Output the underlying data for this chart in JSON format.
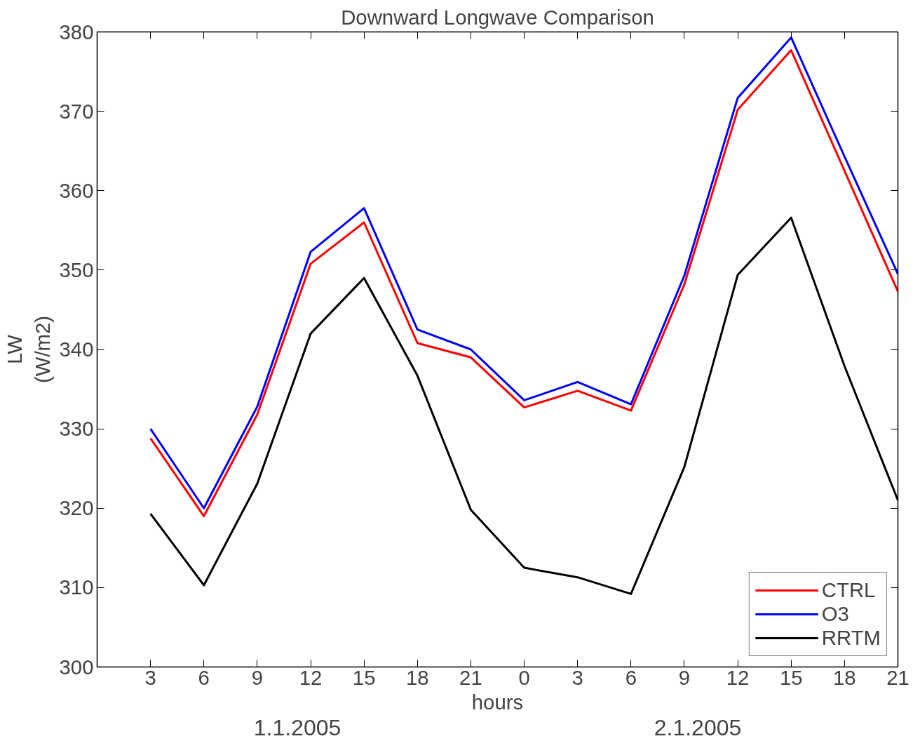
{
  "chart_data": {
    "type": "line",
    "title": "Downward Longwave Comparison",
    "xlabel": "hours",
    "ylabel": "LW\n(W/m2)",
    "x": [
      "2005-01-01T03:00",
      "2005-01-01T06:00",
      "2005-01-01T09:00",
      "2005-01-01T12:00",
      "2005-01-01T15:00",
      "2005-01-01T18:00",
      "2005-01-01T21:00",
      "2005-01-02T00:00",
      "2005-01-02T03:00",
      "2005-01-02T06:00",
      "2005-01-02T09:00",
      "2005-01-02T12:00",
      "2005-01-02T15:00",
      "2005-01-02T18:00",
      "2005-01-02T21:00"
    ],
    "xlim": [
      "2005-01-01T00:00",
      "2005-01-02T21:00"
    ],
    "xticks": [
      {
        "value": "2005-01-01T03:00",
        "label": "3"
      },
      {
        "value": "2005-01-01T06:00",
        "label": "6"
      },
      {
        "value": "2005-01-01T09:00",
        "label": "9"
      },
      {
        "value": "2005-01-01T12:00",
        "label": "12"
      },
      {
        "value": "2005-01-01T15:00",
        "label": "15"
      },
      {
        "value": "2005-01-01T18:00",
        "label": "18"
      },
      {
        "value": "2005-01-01T21:00",
        "label": "21"
      },
      {
        "value": "2005-01-02T00:00",
        "label": "0"
      },
      {
        "value": "2005-01-02T03:00",
        "label": "3"
      },
      {
        "value": "2005-01-02T06:00",
        "label": "6"
      },
      {
        "value": "2005-01-02T09:00",
        "label": "9"
      },
      {
        "value": "2005-01-02T12:00",
        "label": "12"
      },
      {
        "value": "2005-01-02T15:00",
        "label": "15"
      },
      {
        "value": "2005-01-02T18:00",
        "label": "18"
      },
      {
        "value": "2005-01-02T21:00",
        "label": "21"
      }
    ],
    "ylim": [
      300,
      380
    ],
    "yticks": [
      300,
      310,
      320,
      330,
      340,
      350,
      360,
      370,
      380
    ],
    "series": [
      {
        "name": "CTRL",
        "color": "#ff0000",
        "values": [
          328.8,
          319.0,
          331.8,
          350.8,
          356.0,
          340.8,
          339.0,
          332.7,
          334.8,
          332.3,
          348.2,
          370.2,
          377.7,
          362.5,
          347.3
        ]
      },
      {
        "name": "O3",
        "color": "#0000ff",
        "values": [
          330.0,
          320.0,
          332.8,
          352.3,
          357.8,
          342.5,
          340.0,
          333.6,
          335.9,
          333.1,
          349.3,
          371.7,
          379.3,
          364.3,
          349.5
        ]
      },
      {
        "name": "RRTM",
        "color": "#000000",
        "values": [
          319.3,
          310.3,
          323.1,
          342.0,
          349.0,
          336.7,
          319.8,
          312.5,
          311.3,
          309.2,
          325.2,
          349.4,
          356.6,
          337.9,
          321.0
        ]
      }
    ],
    "annotations": [
      "1.1.2005",
      "2.1.2005"
    ],
    "grid": false,
    "legend": "bottom right",
    "line_style": "solid",
    "marker": "none"
  }
}
